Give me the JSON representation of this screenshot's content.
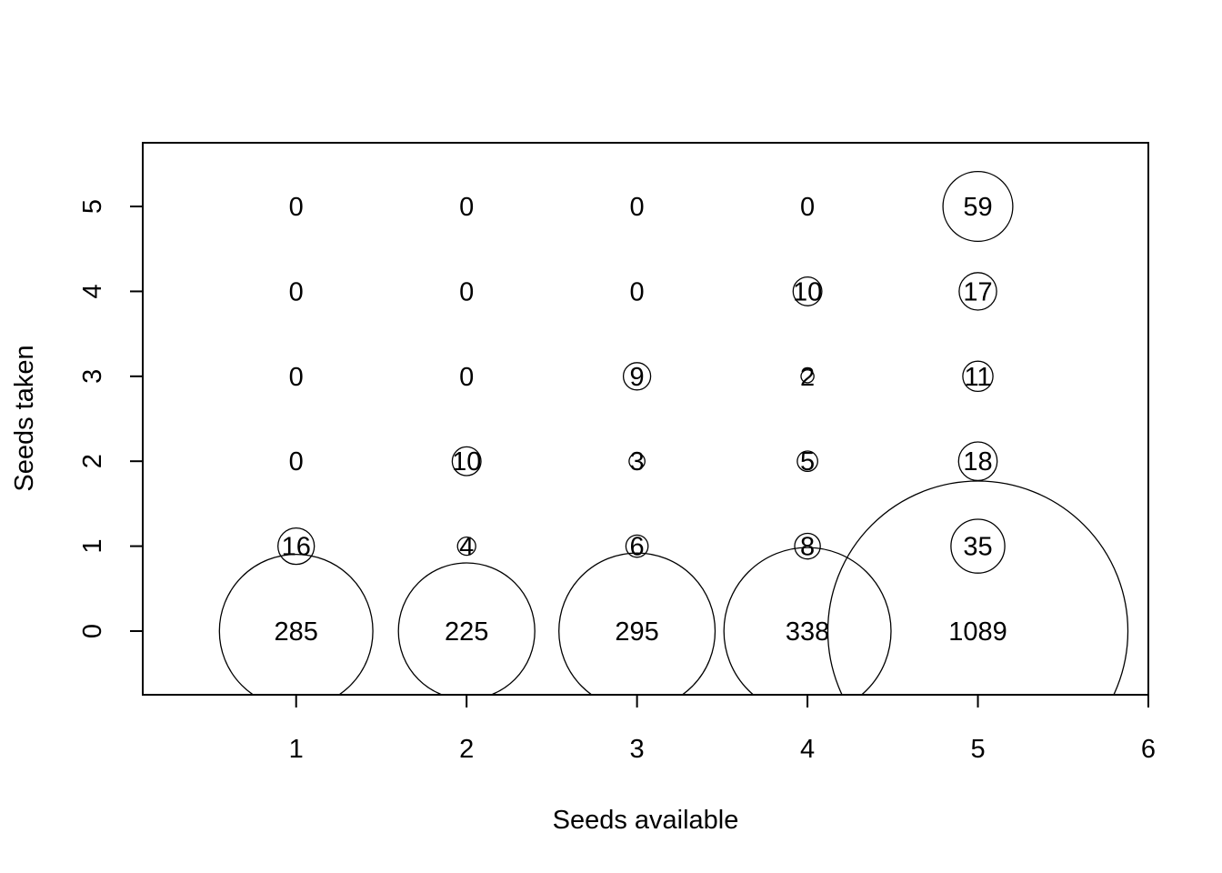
{
  "chart_data": {
    "type": "scatter",
    "subtype": "bubble",
    "title": "",
    "xlabel": "Seeds available",
    "ylabel": "Seeds taken",
    "xlim": [
      0.1,
      6.0
    ],
    "ylim": [
      -0.75,
      5.75
    ],
    "x_ticks": [
      1,
      2,
      3,
      4,
      5,
      6
    ],
    "y_ticks": [
      0,
      1,
      2,
      3,
      4,
      5
    ],
    "grid": false,
    "legend": "none",
    "points": [
      {
        "x": 1,
        "y": 0,
        "count": 285
      },
      {
        "x": 1,
        "y": 1,
        "count": 16
      },
      {
        "x": 1,
        "y": 2,
        "count": 0
      },
      {
        "x": 1,
        "y": 3,
        "count": 0
      },
      {
        "x": 1,
        "y": 4,
        "count": 0
      },
      {
        "x": 1,
        "y": 5,
        "count": 0
      },
      {
        "x": 2,
        "y": 0,
        "count": 225
      },
      {
        "x": 2,
        "y": 1,
        "count": 4
      },
      {
        "x": 2,
        "y": 2,
        "count": 10
      },
      {
        "x": 2,
        "y": 3,
        "count": 0
      },
      {
        "x": 2,
        "y": 4,
        "count": 0
      },
      {
        "x": 2,
        "y": 5,
        "count": 0
      },
      {
        "x": 3,
        "y": 0,
        "count": 295
      },
      {
        "x": 3,
        "y": 1,
        "count": 6
      },
      {
        "x": 3,
        "y": 2,
        "count": 3
      },
      {
        "x": 3,
        "y": 3,
        "count": 9
      },
      {
        "x": 3,
        "y": 4,
        "count": 0
      },
      {
        "x": 3,
        "y": 5,
        "count": 0
      },
      {
        "x": 4,
        "y": 0,
        "count": 338
      },
      {
        "x": 4,
        "y": 1,
        "count": 8
      },
      {
        "x": 4,
        "y": 2,
        "count": 5
      },
      {
        "x": 4,
        "y": 3,
        "count": 2
      },
      {
        "x": 4,
        "y": 4,
        "count": 10
      },
      {
        "x": 4,
        "y": 5,
        "count": 0
      },
      {
        "x": 5,
        "y": 0,
        "count": 1089
      },
      {
        "x": 5,
        "y": 1,
        "count": 35
      },
      {
        "x": 5,
        "y": 2,
        "count": 18
      },
      {
        "x": 5,
        "y": 3,
        "count": 11
      },
      {
        "x": 5,
        "y": 4,
        "count": 17
      },
      {
        "x": 5,
        "y": 5,
        "count": 59
      }
    ]
  }
}
